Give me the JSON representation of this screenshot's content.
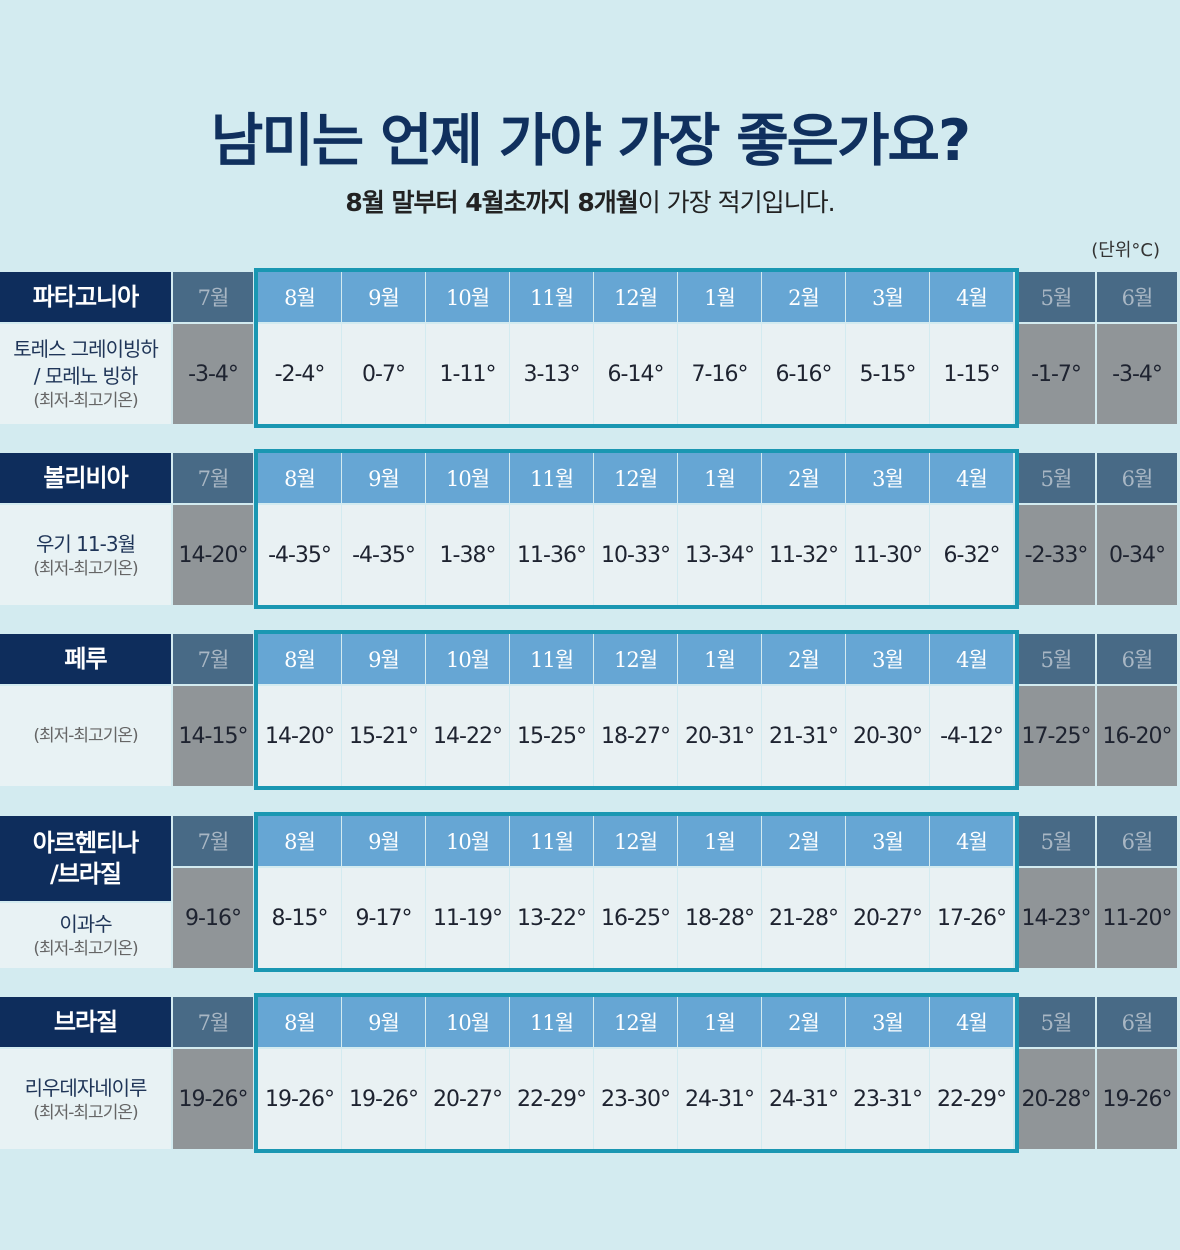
{
  "title": "남미는 언제 가야 가장 좋은가요?",
  "subtitle": {
    "bold1": "8월 말부터 4월초까지 8개월",
    "rest": "이 가장 적기입니다."
  },
  "unit": "(단위°C)",
  "months": [
    "7월",
    "8월",
    "9월",
    "10월",
    "11월",
    "12월",
    "1월",
    "2월",
    "3월",
    "4월",
    "5월",
    "6월"
  ],
  "colors": {
    "title": "#10305e",
    "header_bg": "#0e2d5c",
    "month_out_bg": "#486a86",
    "month_in_bg": "#66a6d4",
    "value_out_bg": "#909598",
    "value_in_bg": "#e9f1f3",
    "frame": "#1a97b2",
    "background": "#d3ebf0"
  },
  "regions": [
    {
      "name": "파타고니아",
      "label": "토레스 그레이빙하\n/ 모레노 빙하",
      "minmax": "(최저-최고기온)",
      "values": [
        "-3-4°",
        "-2-4°",
        "0-7°",
        "1-11°",
        "3-13°",
        "6-14°",
        "7-16°",
        "6-16°",
        "5-15°",
        "1-15°",
        "-1-7°",
        "-3-4°"
      ]
    },
    {
      "name": "볼리비아",
      "label": "우기 11-3월",
      "minmax": "(최저-최고기온)",
      "values": [
        "14-20°",
        "-4-35°",
        "-4-35°",
        "1-38°",
        "11-36°",
        "10-33°",
        "13-34°",
        "11-32°",
        "11-30°",
        "6-32°",
        "-2-33°",
        "0-34°"
      ]
    },
    {
      "name": "페루",
      "label": "",
      "minmax": "(최저-최고기온)",
      "values": [
        "14-15°",
        "14-20°",
        "15-21°",
        "14-22°",
        "15-25°",
        "18-27°",
        "20-31°",
        "21-31°",
        "20-30°",
        "-4-12°",
        "17-25°",
        "16-20°"
      ]
    },
    {
      "name": "아르헨티나\n/브라질",
      "label": "이과수",
      "minmax": "(최저-최고기온)",
      "values": [
        "9-16°",
        "8-15°",
        "9-17°",
        "11-19°",
        "13-22°",
        "16-25°",
        "18-28°",
        "21-28°",
        "20-27°",
        "17-26°",
        "14-23°",
        "11-20°"
      ]
    },
    {
      "name": "브라질",
      "label": "리우데자네이루",
      "minmax": "(최저-최고기온)",
      "values": [
        "19-26°",
        "19-26°",
        "19-26°",
        "20-27°",
        "22-29°",
        "23-30°",
        "24-31°",
        "24-31°",
        "23-31°",
        "22-29°",
        "20-28°",
        "19-26°"
      ]
    }
  ]
}
